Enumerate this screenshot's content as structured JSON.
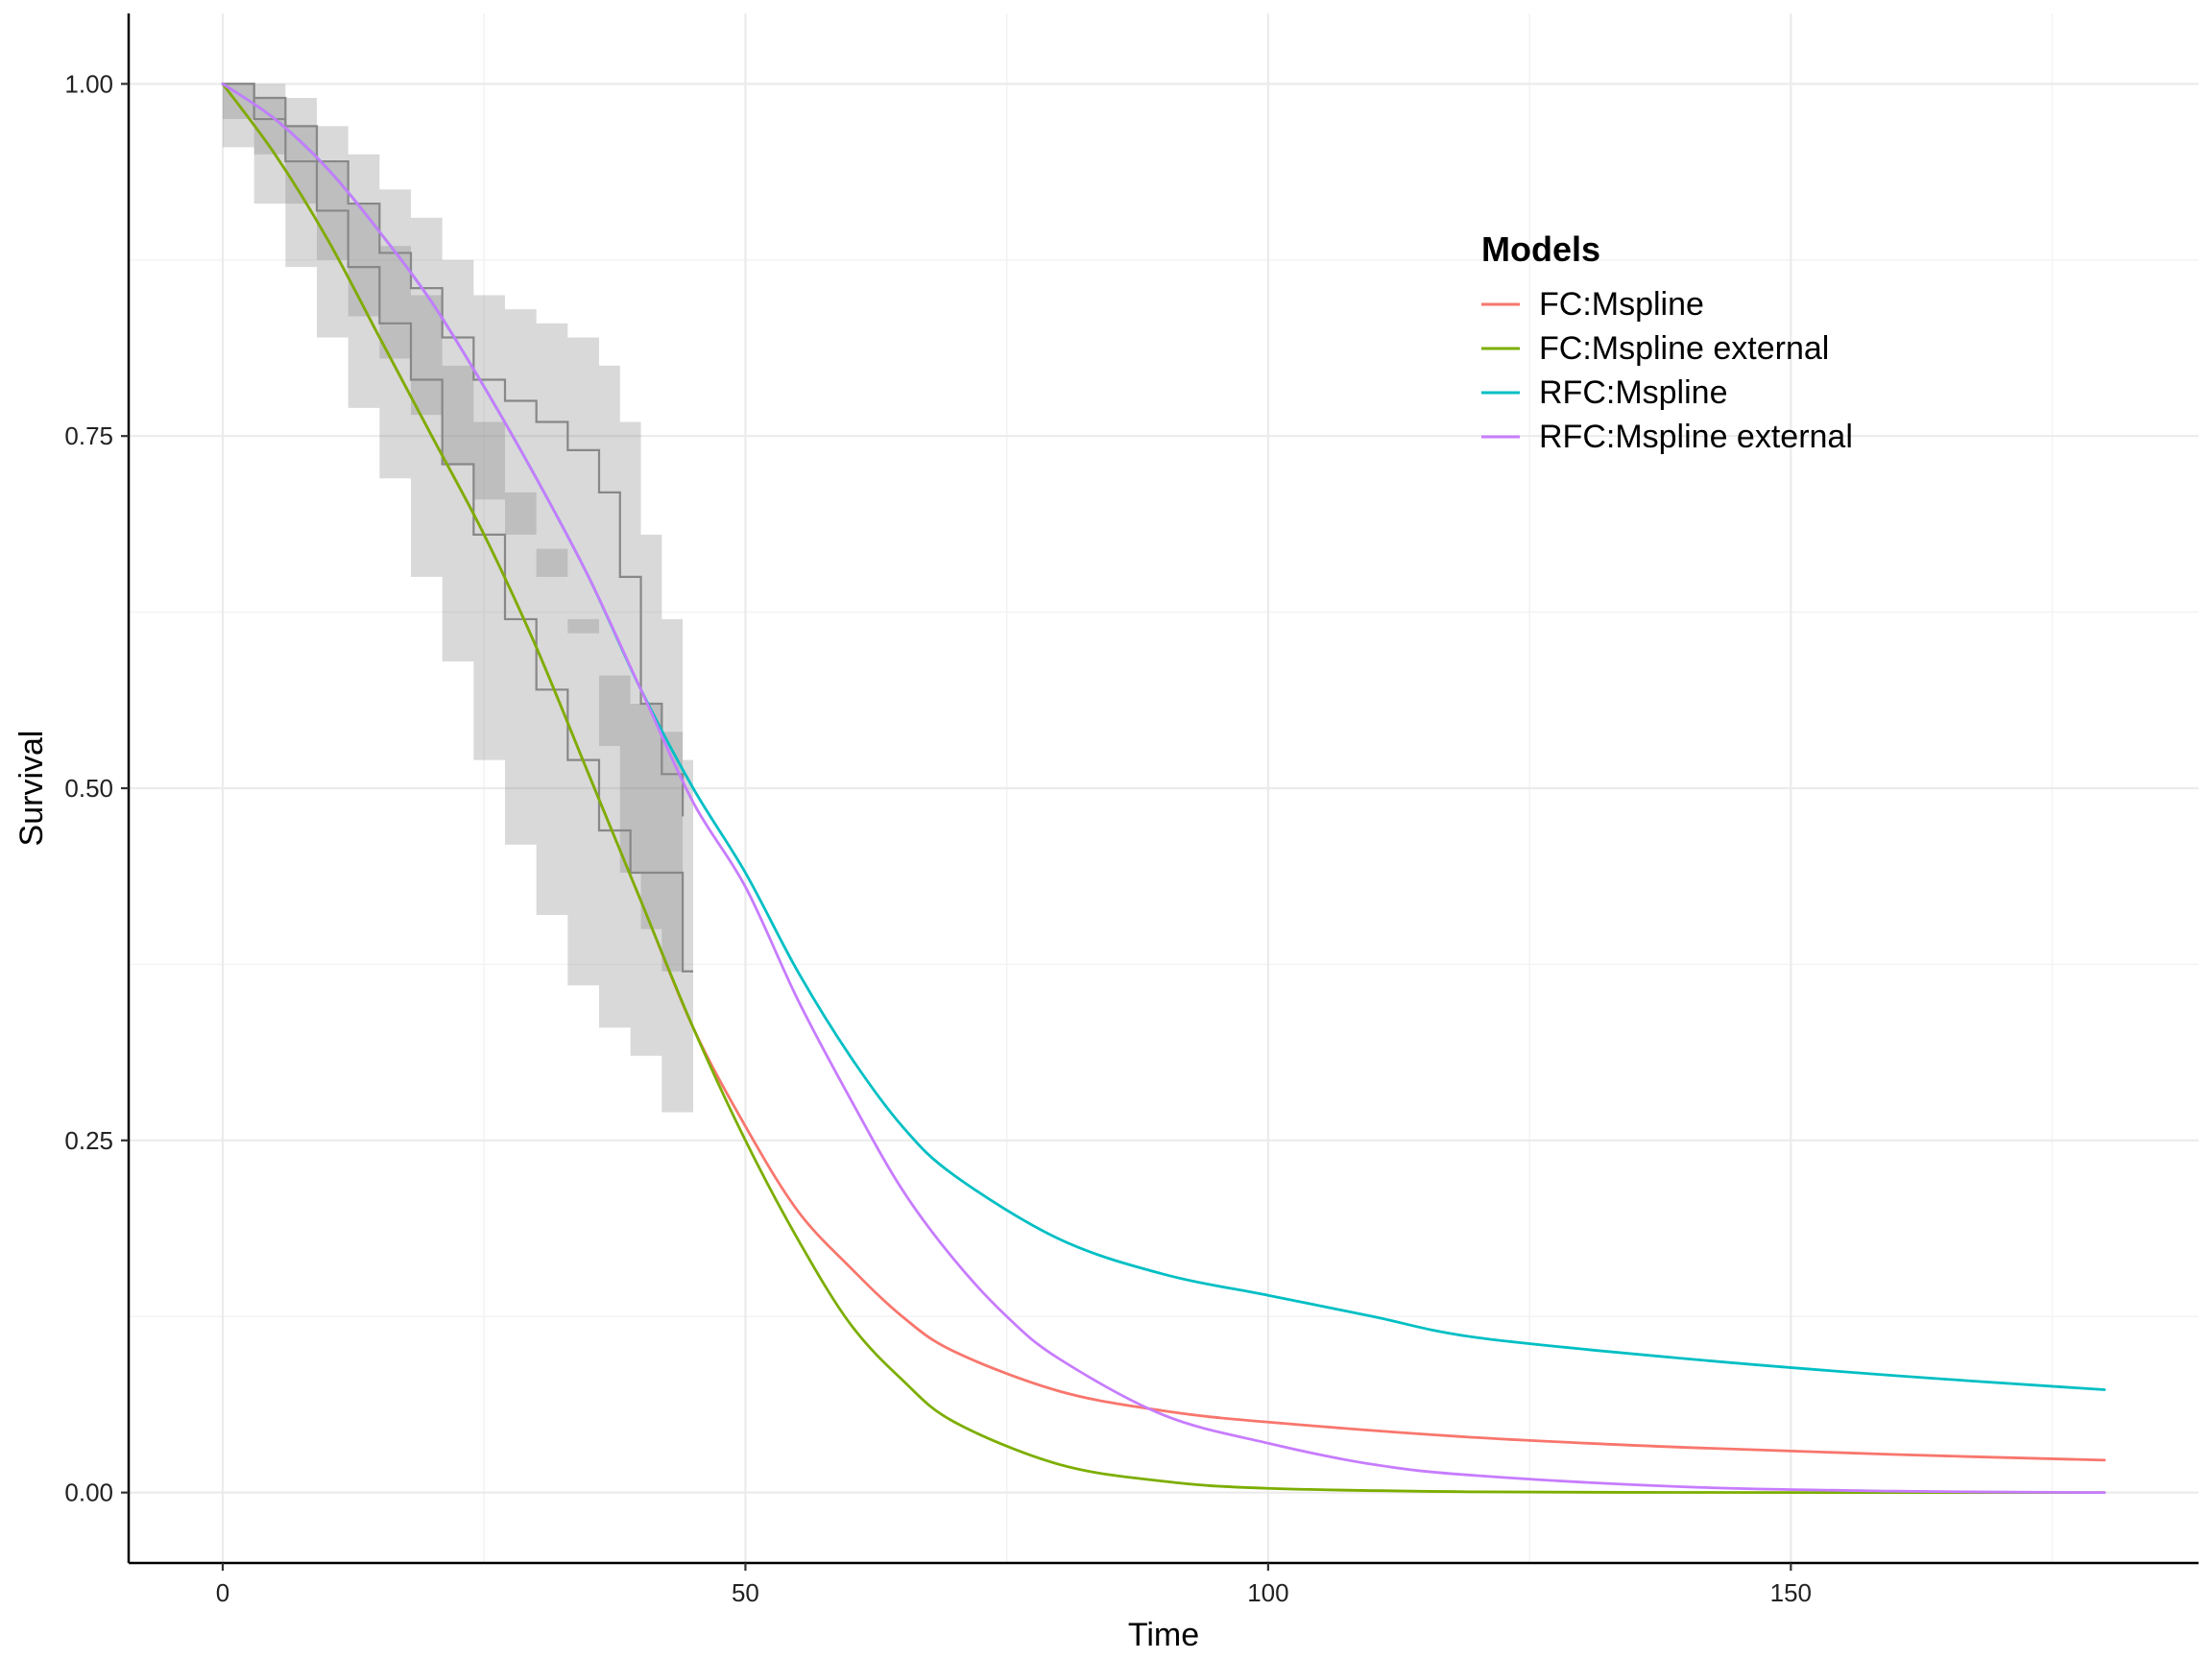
{
  "chart_data": {
    "type": "line",
    "xlabel": "Time",
    "ylabel": "Survival",
    "xlim": [
      -9,
      189
    ],
    "ylim": [
      -0.05,
      1.05
    ],
    "x_ticks": [
      0,
      50,
      100,
      150
    ],
    "x_tick_labels": [
      "0",
      "50",
      "100",
      "150"
    ],
    "y_ticks": [
      0,
      0.25,
      0.5,
      0.75,
      1.0
    ],
    "y_tick_labels": [
      "0.00",
      "0.25",
      "0.50",
      "0.75",
      "1.00"
    ],
    "grid": true,
    "legend": {
      "title": "Models",
      "placement": "top-right"
    },
    "series": [
      {
        "name": "FC:Mspline",
        "color": "#F8766D",
        "x": [
          0,
          5,
          10,
          15,
          20,
          25,
          30,
          35,
          40,
          45,
          50,
          55,
          60,
          65,
          70,
          80,
          90,
          100,
          120,
          140,
          160,
          180
        ],
        "y": [
          1.0,
          0.95,
          0.89,
          0.82,
          0.75,
          0.68,
          0.6,
          0.51,
          0.42,
          0.33,
          0.26,
          0.2,
          0.16,
          0.125,
          0.1,
          0.072,
          0.058,
          0.05,
          0.039,
          0.032,
          0.027,
          0.023
        ]
      },
      {
        "name": "FC:Mspline external",
        "color": "#7CAE00",
        "x": [
          0,
          5,
          10,
          15,
          20,
          25,
          30,
          35,
          40,
          45,
          50,
          55,
          60,
          65,
          70,
          80,
          90,
          100,
          120,
          140,
          160,
          180
        ],
        "y": [
          1.0,
          0.95,
          0.89,
          0.82,
          0.75,
          0.68,
          0.6,
          0.51,
          0.42,
          0.33,
          0.25,
          0.18,
          0.12,
          0.08,
          0.05,
          0.02,
          0.008,
          0.003,
          0.0005,
          0.0001,
          0.0,
          0.0
        ]
      },
      {
        "name": "RFC:Mspline",
        "color": "#00BFC4",
        "x": [
          0,
          5,
          10,
          15,
          20,
          25,
          30,
          35,
          40,
          45,
          50,
          55,
          60,
          65,
          70,
          80,
          90,
          100,
          110,
          120,
          140,
          160,
          180
        ],
        "y": [
          1.0,
          0.975,
          0.94,
          0.895,
          0.845,
          0.785,
          0.72,
          0.65,
          0.57,
          0.5,
          0.44,
          0.37,
          0.31,
          0.26,
          0.225,
          0.18,
          0.155,
          0.14,
          0.125,
          0.11,
          0.095,
          0.083,
          0.073
        ]
      },
      {
        "name": "RFC:Mspline external",
        "color": "#C77CFF",
        "x": [
          0,
          5,
          10,
          15,
          20,
          25,
          30,
          35,
          40,
          45,
          50,
          55,
          60,
          65,
          70,
          75,
          80,
          90,
          100,
          110,
          120,
          140,
          160,
          180
        ],
        "y": [
          1.0,
          0.975,
          0.94,
          0.895,
          0.845,
          0.785,
          0.72,
          0.65,
          0.57,
          0.49,
          0.43,
          0.35,
          0.28,
          0.215,
          0.165,
          0.125,
          0.095,
          0.055,
          0.035,
          0.02,
          0.012,
          0.004,
          0.001,
          0.0
        ]
      }
    ],
    "km_curves": [
      {
        "name": "km-group-1",
        "color": "#888888",
        "x": [
          0,
          3,
          6,
          9,
          12,
          15,
          18,
          21,
          24,
          27,
          30,
          33,
          36,
          39,
          42,
          44,
          45
        ],
        "y": [
          1.0,
          0.975,
          0.945,
          0.91,
          0.87,
          0.83,
          0.79,
          0.73,
          0.68,
          0.62,
          0.57,
          0.52,
          0.47,
          0.44,
          0.44,
          0.37,
          0.37
        ],
        "lower": [
          1.0,
          0.955,
          0.915,
          0.87,
          0.82,
          0.77,
          0.72,
          0.65,
          0.59,
          0.52,
          0.46,
          0.41,
          0.36,
          0.33,
          0.31,
          0.27,
          0.27
        ],
        "upper": [
          1.0,
          0.99,
          0.97,
          0.945,
          0.915,
          0.885,
          0.85,
          0.8,
          0.76,
          0.71,
          0.67,
          0.62,
          0.58,
          0.56,
          0.54,
          0.52,
          0.52
        ]
      },
      {
        "name": "km-group-2",
        "color": "#888888",
        "x": [
          0,
          3,
          6,
          9,
          12,
          15,
          18,
          21,
          24,
          27,
          30,
          33,
          36,
          38,
          40,
          42,
          44
        ],
        "y": [
          1.0,
          0.99,
          0.97,
          0.945,
          0.915,
          0.88,
          0.855,
          0.82,
          0.79,
          0.775,
          0.76,
          0.74,
          0.71,
          0.65,
          0.56,
          0.51,
          0.48
        ],
        "lower": [
          1.0,
          0.975,
          0.95,
          0.915,
          0.875,
          0.835,
          0.805,
          0.765,
          0.73,
          0.705,
          0.68,
          0.65,
          0.61,
          0.53,
          0.44,
          0.4,
          0.37
        ],
        "upper": [
          1.0,
          1.0,
          0.99,
          0.97,
          0.95,
          0.925,
          0.905,
          0.875,
          0.85,
          0.84,
          0.83,
          0.82,
          0.8,
          0.76,
          0.68,
          0.62,
          0.6
        ]
      }
    ]
  }
}
